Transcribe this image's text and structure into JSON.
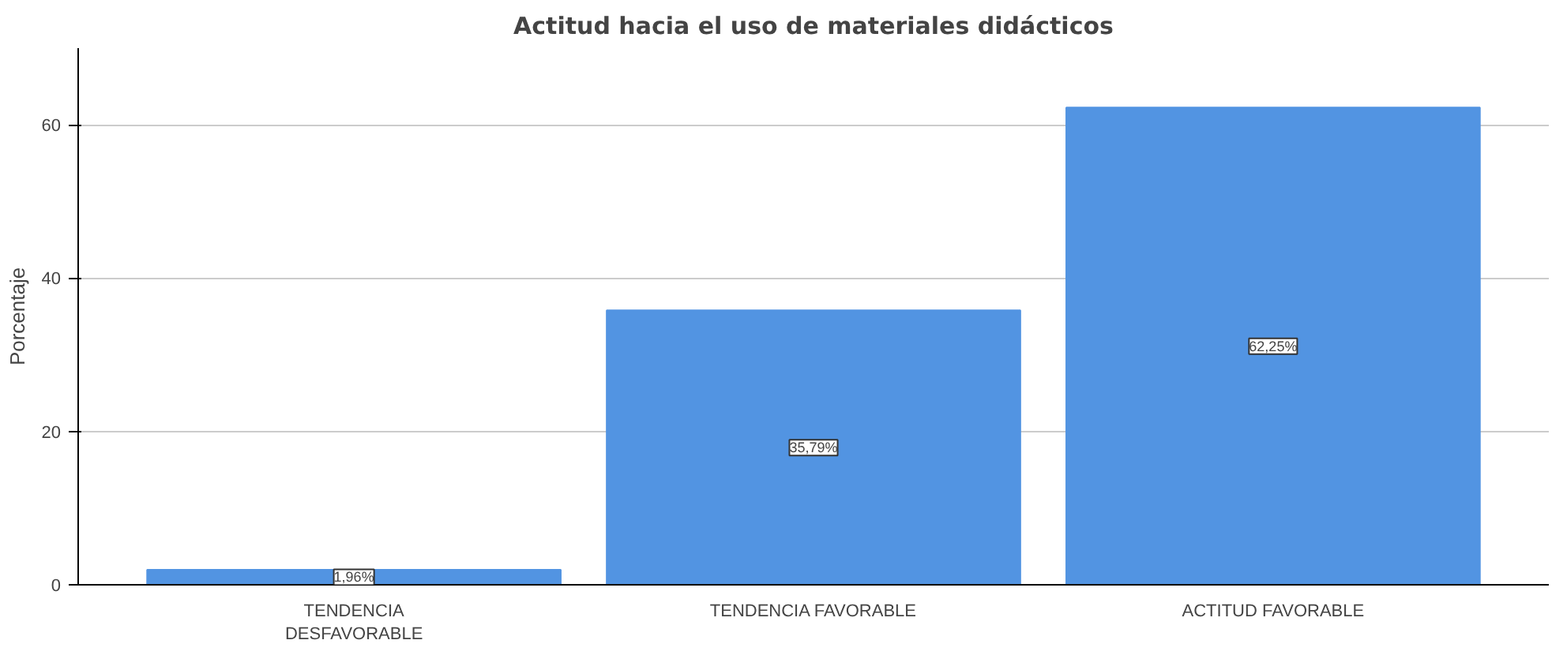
{
  "chart_data": {
    "type": "bar",
    "title": "Actitud hacia el uso de materiales didácticos",
    "ylabel": "Porcentaje",
    "categories": [
      "TENDENCIA\nDESFAVORABLE",
      "TENDENCIA FAVORABLE",
      "ACTITUD FAVORABLE"
    ],
    "values": [
      1.96,
      35.79,
      62.25
    ],
    "value_labels": [
      "1,96%",
      "35,79%",
      "62,25%"
    ],
    "color": "#5294e2",
    "ylim": [
      0,
      70
    ],
    "yticks": [
      0,
      20,
      40,
      60
    ],
    "grid": "y"
  }
}
